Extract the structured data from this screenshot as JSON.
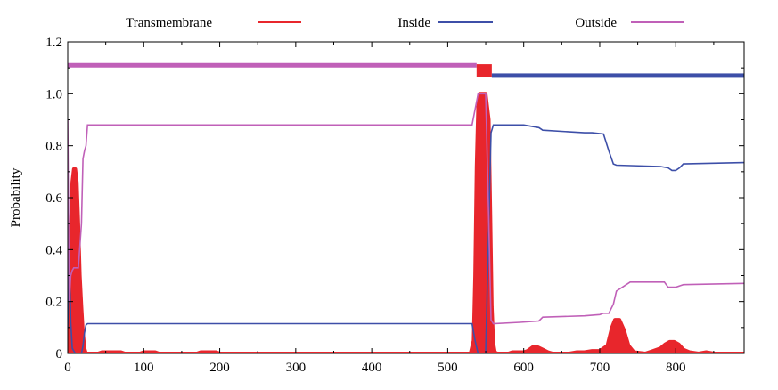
{
  "chart_data": {
    "type": "line",
    "title": "",
    "xlabel": "",
    "ylabel": "Probability",
    "xlim": [
      0,
      890
    ],
    "ylim": [
      0,
      1.2
    ],
    "x_ticks": [
      0,
      100,
      200,
      300,
      400,
      500,
      600,
      700,
      800
    ],
    "y_ticks": [
      0,
      0.2,
      0.4,
      0.6,
      0.8,
      1.0,
      1.2
    ],
    "x_tick_labels": [
      "0",
      "100",
      "200",
      "300",
      "400",
      "500",
      "600",
      "700",
      "800"
    ],
    "y_tick_labels": [
      "0",
      "0.2",
      "0.4",
      "0.6",
      "0.8",
      "1.0",
      "1.2"
    ],
    "legend_position": "top",
    "grid": false,
    "legend": [
      {
        "key": "transmembrane",
        "label": "Transmembrane",
        "color": "#e8262c"
      },
      {
        "key": "inside",
        "label": "Inside",
        "color": "#3d4fa8"
      },
      {
        "key": "outside",
        "label": "Outside",
        "color": "#c060b8"
      }
    ],
    "topology_bars": [
      {
        "series": "outside",
        "x": [
          0,
          538
        ],
        "y": 1.11,
        "color": "#c060b8"
      },
      {
        "series": "transmembrane",
        "x": [
          538,
          558
        ],
        "y": 1.09,
        "color": "#e8262c"
      },
      {
        "series": "inside",
        "x": [
          558,
          890
        ],
        "y": 1.07,
        "color": "#3d4fa8"
      }
    ],
    "series": [
      {
        "key": "transmembrane",
        "color": "#e8262c",
        "x": [
          0,
          2,
          4,
          6,
          8,
          10,
          12,
          14,
          16,
          18,
          20,
          22,
          24,
          26,
          40,
          45,
          70,
          75,
          95,
          100,
          115,
          120,
          170,
          175,
          195,
          200,
          530,
          534,
          536,
          538,
          540,
          542,
          550,
          554,
          556,
          558,
          560,
          562,
          565,
          580,
          585,
          600,
          605,
          612,
          618,
          625,
          632,
          638,
          645,
          660,
          670,
          680,
          690,
          700,
          710,
          716,
          720,
          726,
          732,
          738,
          745,
          760,
          770,
          780,
          786,
          792,
          798,
          804,
          810,
          818,
          830,
          840,
          850,
          890
        ],
        "y": [
          0,
          0.12,
          0.48,
          0.66,
          0.71,
          0.71,
          0.66,
          0.5,
          0.3,
          0.18,
          0.08,
          0.02,
          0,
          0,
          0,
          0.005,
          0.005,
          0,
          0,
          0.005,
          0.005,
          0,
          0,
          0.005,
          0.005,
          0,
          0,
          0.05,
          0.3,
          0.72,
          0.95,
          1.0,
          1.0,
          0.9,
          0.55,
          0.18,
          0.04,
          0.005,
          0,
          0,
          0.005,
          0.005,
          0.01,
          0.025,
          0.025,
          0.015,
          0.005,
          0,
          0,
          0,
          0.005,
          0.005,
          0.01,
          0.01,
          0.03,
          0.1,
          0.13,
          0.13,
          0.09,
          0.03,
          0.005,
          0,
          0.01,
          0.02,
          0.035,
          0.045,
          0.045,
          0.035,
          0.015,
          0.005,
          0,
          0.005,
          0,
          0
        ]
      },
      {
        "key": "inside",
        "color": "#3d4fa8",
        "x": [
          0,
          2,
          4,
          6,
          8,
          10,
          14,
          18,
          20,
          22,
          24,
          26,
          532,
          536,
          540,
          550,
          554,
          557,
          560,
          600,
          620,
          625,
          680,
          690,
          705,
          712,
          718,
          722,
          780,
          790,
          795,
          800,
          805,
          810,
          890
        ],
        "y": [
          0.1,
          0.4,
          0.12,
          0.02,
          0.01,
          0,
          0,
          0,
          0.03,
          0.08,
          0.11,
          0.115,
          0.115,
          0.05,
          0,
          0,
          0.5,
          0.85,
          0.88,
          0.88,
          0.87,
          0.86,
          0.85,
          0.85,
          0.845,
          0.78,
          0.73,
          0.725,
          0.72,
          0.715,
          0.705,
          0.705,
          0.715,
          0.73,
          0.735
        ]
      },
      {
        "key": "outside",
        "color": "#c060b8",
        "x": [
          0,
          2,
          4,
          6,
          8,
          10,
          14,
          18,
          20,
          22,
          24,
          26,
          532,
          536,
          540,
          550,
          554,
          557,
          560,
          595,
          620,
          625,
          680,
          700,
          705,
          712,
          718,
          722,
          740,
          745,
          785,
          790,
          800,
          810,
          890
        ],
        "y": [
          0.9,
          0.2,
          0.3,
          0.32,
          0.33,
          0.33,
          0.33,
          0.5,
          0.75,
          0.78,
          0.8,
          0.88,
          0.88,
          0.94,
          1.0,
          1.0,
          0.5,
          0.13,
          0.115,
          0.12,
          0.125,
          0.14,
          0.145,
          0.15,
          0.155,
          0.155,
          0.19,
          0.24,
          0.275,
          0.275,
          0.275,
          0.255,
          0.255,
          0.265,
          0.27
        ]
      }
    ]
  }
}
